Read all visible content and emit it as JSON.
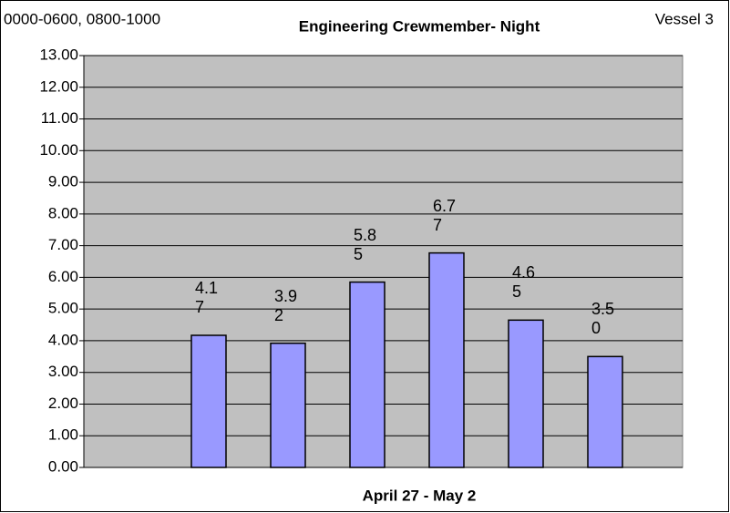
{
  "chart_data": {
    "type": "bar",
    "title": "Engineering Crewmember- Night",
    "annotations": [
      "0000-0600, 0800-1000",
      "Vessel 3"
    ],
    "x_label": "April 27 - May 2",
    "categories": [
      null,
      null,
      null,
      null,
      null,
      null
    ],
    "values": [
      4.17,
      3.92,
      5.85,
      6.77,
      4.65,
      3.5
    ],
    "value_labels": [
      "4.17",
      "3.92",
      "5.85",
      "6.77",
      "4.65",
      "3.50"
    ],
    "color": "#9999ff",
    "ylim": [
      0,
      13
    ],
    "yticks": [
      {
        "value": 0,
        "label": "0.00"
      },
      {
        "value": 1,
        "label": "1.00"
      },
      {
        "value": 2,
        "label": "2.00"
      },
      {
        "value": 3,
        "label": "3.00"
      },
      {
        "value": 4,
        "label": "4.00"
      },
      {
        "value": 5,
        "label": "5.00"
      },
      {
        "value": 6,
        "label": "6.00"
      },
      {
        "value": 7,
        "label": "7.00"
      },
      {
        "value": 8,
        "label": "8.00"
      },
      {
        "value": 9,
        "label": "9.00"
      },
      {
        "value": 10,
        "label": "10.00"
      },
      {
        "value": 11,
        "label": "11.00"
      },
      {
        "value": 12,
        "label": "12.00"
      },
      {
        "value": 13,
        "label": "13.00"
      }
    ],
    "grid": true
  }
}
